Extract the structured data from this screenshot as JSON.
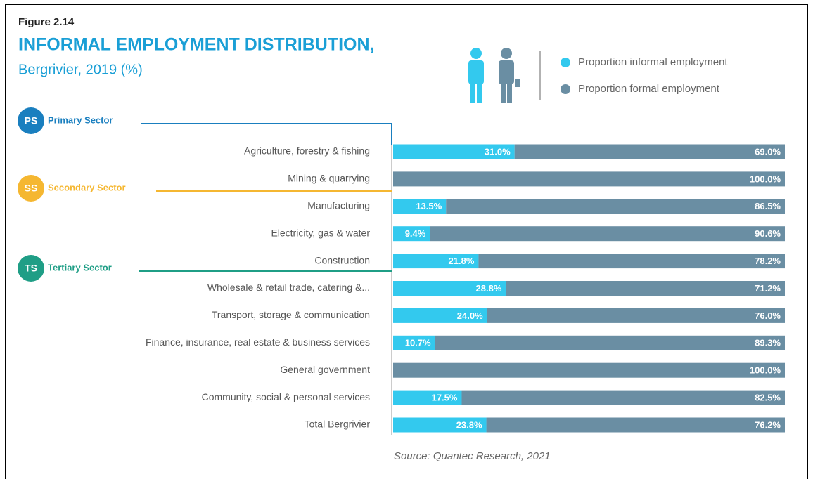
{
  "chart_data": {
    "type": "stacked_barh",
    "figure_label": "Figure 2.14",
    "title": "INFORMAL EMPLOYMENT DISTRIBUTION,",
    "subtitle": "Bergrivier, 2019 (%)",
    "source": "Source: Quantec Research, 2021",
    "categories": [
      "Agriculture, forestry & fishing",
      "Mining & quarrying",
      "Manufacturing",
      "Electricity, gas & water",
      "Construction",
      "Wholesale & retail trade, catering &...",
      "Transport, storage & communication",
      "Finance, insurance, real estate & business services",
      "General government",
      "Community, social & personal services",
      "Total Bergrivier"
    ],
    "series": [
      {
        "name": "Proportion informal employment",
        "color": "#33c9ee",
        "values": [
          31.0,
          0,
          13.5,
          9.4,
          21.8,
          28.8,
          24.0,
          10.7,
          0,
          17.5,
          23.8
        ],
        "value_labels": [
          "31.0%",
          null,
          "13.5%",
          "9.4%",
          "21.8%",
          "28.8%",
          "24.0%",
          "10.7%",
          null,
          "17.5%",
          "23.8%"
        ]
      },
      {
        "name": "Proportion formal employment",
        "color": "#6a8ea3",
        "values": [
          69.0,
          100.0,
          86.5,
          90.6,
          78.2,
          71.2,
          76.0,
          89.3,
          100.0,
          82.5,
          76.2
        ],
        "value_labels": [
          "69.0%",
          "100.0%",
          "86.5%",
          "90.6%",
          "78.2%",
          "71.2%",
          "76.0%",
          "89.3%",
          "100.0%",
          "82.5%",
          "76.2%"
        ]
      }
    ],
    "xlim": [
      0,
      100
    ],
    "sectors": [
      {
        "abbr": "PS",
        "name": "Primary Sector",
        "color": "#1a7fbf"
      },
      {
        "abbr": "SS",
        "name": "Secondary Sector",
        "color": "#f5b731"
      },
      {
        "abbr": "TS",
        "name": "Tertiary Sector",
        "color": "#1f9e86"
      }
    ]
  }
}
